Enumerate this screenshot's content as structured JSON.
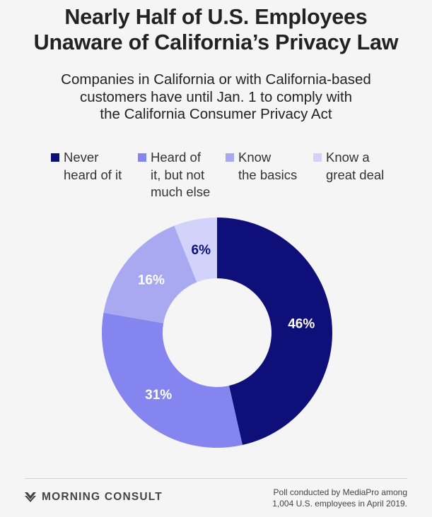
{
  "header": {
    "title_lines": [
      "Nearly Half of U.S. Employees",
      "Unaware of California’s Privacy Law"
    ],
    "subtitle_lines": [
      "Companies in California or with California-based",
      "customers have until Jan. 1 to comply with",
      "the California Consumer Privacy Act"
    ]
  },
  "chart_data": {
    "type": "pie",
    "donut": true,
    "start": "top, clockwise",
    "categories": [
      "Never heard of it",
      "Heard of it, but not much else",
      "Know the basics",
      "Know a great deal"
    ],
    "values": [
      46,
      31,
      16,
      6
    ],
    "data_labels": [
      "46%",
      "31%",
      "16%",
      "6%"
    ],
    "colors": [
      "#0f0f7a",
      "#8585f0",
      "#a9a9f2",
      "#d2d2fb"
    ],
    "label_colors": [
      "#ffffff",
      "#ffffff",
      "#ffffff",
      "#0f0f7a"
    ],
    "legend": {
      "placement": "top",
      "items": [
        {
          "lines": [
            "Never",
            "heard of it"
          ]
        },
        {
          "lines": [
            "Heard of",
            "it, but not",
            "much else"
          ]
        },
        {
          "lines": [
            "Know",
            "the basics"
          ]
        },
        {
          "lines": [
            "Know a",
            "great deal"
          ]
        }
      ]
    }
  },
  "footer": {
    "brand": "MORNING CONSULT",
    "brand_icon": "morning-consult-chevron-logo",
    "note_lines": [
      "Poll conducted by MediaPro among",
      "1,004 U.S. employees in April 2019."
    ]
  }
}
